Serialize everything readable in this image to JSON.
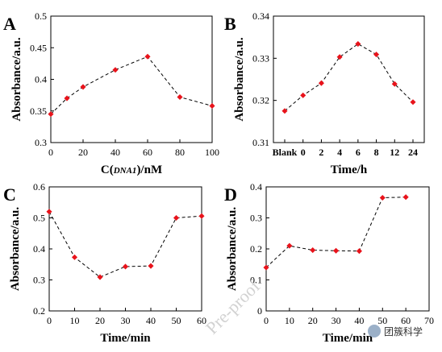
{
  "chart_data": [
    {
      "panel": "A",
      "type": "line",
      "x": [
        0,
        10,
        20,
        40,
        60,
        80,
        100
      ],
      "y": [
        0.345,
        0.37,
        0.388,
        0.415,
        0.436,
        0.372,
        0.358
      ],
      "xlabel_parts": [
        "C(",
        "DNA1",
        ")/nM"
      ],
      "ylabel": "Absorbance/a.u.",
      "xlim": [
        0,
        100
      ],
      "ylim": [
        0.3,
        0.5
      ],
      "xticks": [
        0,
        20,
        40,
        60,
        80,
        100
      ],
      "yticks": [
        0.3,
        0.35,
        0.4,
        0.45,
        0.5
      ],
      "yticklabels": [
        "0.3",
        "0.35",
        "0.4",
        "0.45",
        "0.5"
      ]
    },
    {
      "panel": "B",
      "type": "line",
      "categories": [
        "Blank",
        "0",
        "2",
        "4",
        "6",
        "8",
        "12",
        "24"
      ],
      "values": [
        0.3175,
        0.3212,
        0.3241,
        0.3303,
        0.3334,
        0.3309,
        0.3239,
        0.3196
      ],
      "xlabel": "Time/h",
      "ylabel": "Absorbance/a.u.",
      "ylim": [
        0.31,
        0.34
      ],
      "yticks": [
        0.31,
        0.32,
        0.33,
        0.34
      ],
      "yticklabels": [
        "0.31",
        "0.32",
        "0.33",
        "0.34"
      ]
    },
    {
      "panel": "C",
      "type": "line",
      "x": [
        0,
        10,
        20,
        30,
        40,
        50,
        60
      ],
      "y": [
        0.52,
        0.373,
        0.309,
        0.343,
        0.345,
        0.5,
        0.506
      ],
      "xlabel": "Time/min",
      "ylabel": "Absorbance/a.u.",
      "xlim": [
        0,
        60
      ],
      "ylim": [
        0.2,
        0.6
      ],
      "xticks": [
        0,
        10,
        20,
        30,
        40,
        50,
        60
      ],
      "yticks": [
        0.2,
        0.3,
        0.4,
        0.5,
        0.6
      ],
      "yticklabels": [
        "0.2",
        "0.3",
        "0.4",
        "0.5",
        "0.6"
      ]
    },
    {
      "panel": "D",
      "type": "line",
      "x": [
        0,
        10,
        20,
        30,
        40,
        50,
        60
      ],
      "y": [
        0.14,
        0.21,
        0.196,
        0.194,
        0.193,
        0.365,
        0.367
      ],
      "xlabel": "Time/min",
      "ylabel": "Absorbance/a.u.",
      "xlim": [
        0,
        70
      ],
      "ylim": [
        0,
        0.4
      ],
      "xticks": [
        0,
        10,
        20,
        30,
        40,
        50,
        60,
        70
      ],
      "yticks": [
        0,
        0.1,
        0.2,
        0.3,
        0.4
      ],
      "yticklabels": [
        "0",
        "0.1",
        "0.2",
        "0.3",
        "0.4"
      ]
    }
  ],
  "style": {
    "marker_color": "#e8131b",
    "line_color": "#000000"
  },
  "watermark": {
    "text": "Pre-proof"
  },
  "badge": {
    "text": "团簇科学",
    "icon": "wechat-icon"
  }
}
